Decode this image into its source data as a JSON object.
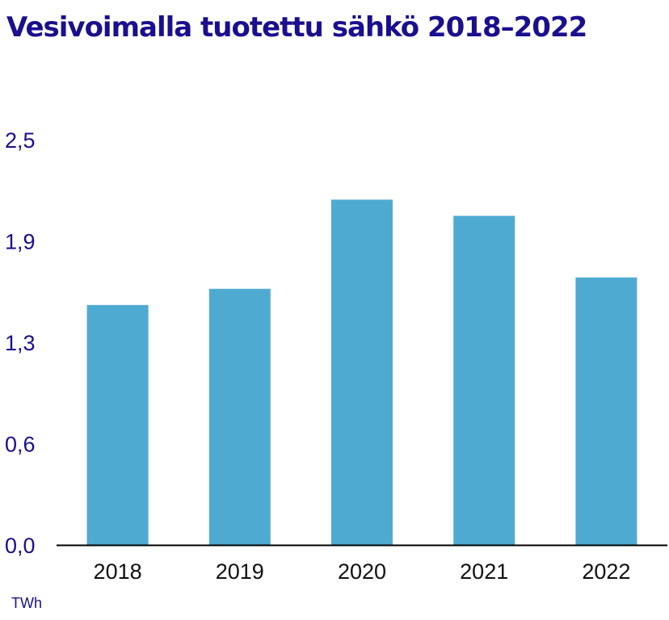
{
  "chart_data": {
    "type": "bar",
    "title": "Vesivoimalla tuotettu sähkö 2018–2022",
    "categories": [
      "2018",
      "2019",
      "2020",
      "2021",
      "2022"
    ],
    "values": [
      1.48,
      1.58,
      2.13,
      2.03,
      1.65
    ],
    "yticks": [
      "0,0",
      "0,6",
      "1,3",
      "1,9",
      "2,5"
    ],
    "ytick_values": [
      0.0,
      0.625,
      1.25,
      1.875,
      2.5
    ],
    "ylim": [
      0,
      2.5
    ],
    "unit": "TWh",
    "grid": false,
    "colors": {
      "bar": "#4faad2",
      "title": "#1a0f8f",
      "axis_text": "#1a0f8f",
      "category_text": "#111111",
      "axis_line": "#000000"
    }
  }
}
